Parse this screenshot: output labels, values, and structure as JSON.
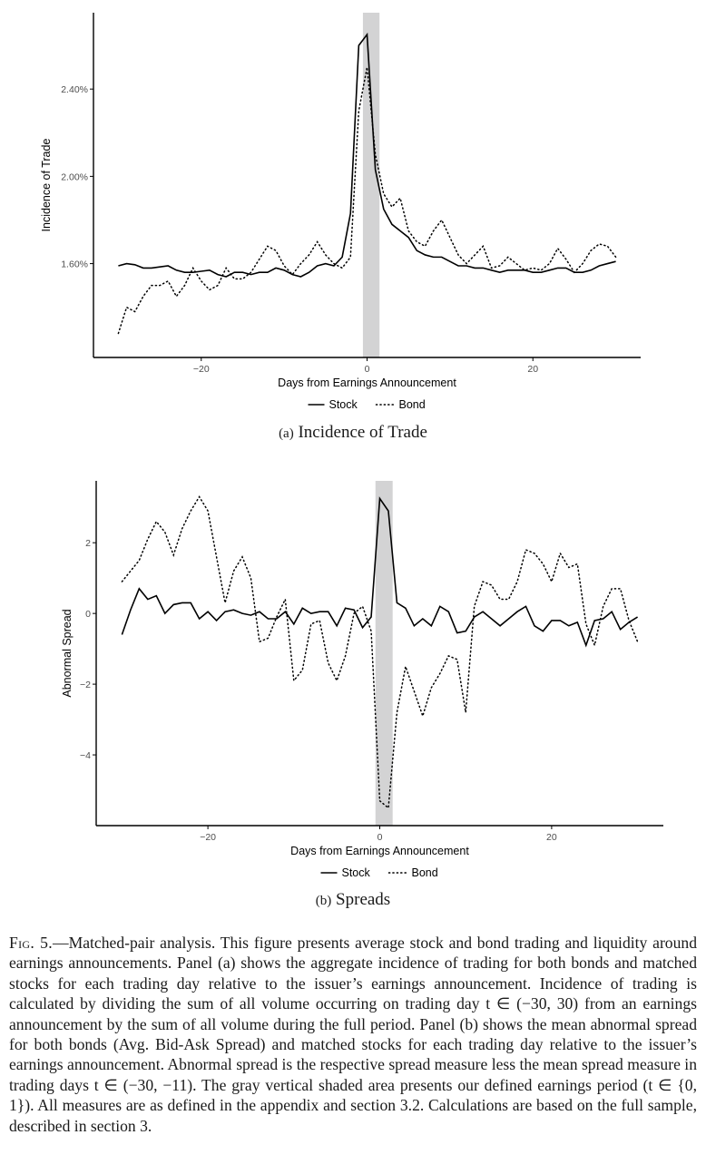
{
  "colors": {
    "line": "#000000",
    "shade": "#d3d3d4",
    "tick_text": "#4d4d4d"
  },
  "chart_data": [
    {
      "id": "a",
      "type": "line",
      "title": "Incidence of Trade",
      "panel_tag": "(a)",
      "xlabel": "Days from Earnings Announcement",
      "ylabel": "Incidence of Trade",
      "xlim": [
        -33,
        33
      ],
      "ylim": [
        0.0117,
        0.0275
      ],
      "x_ticks": [
        {
          "value": -20,
          "label": "−20"
        },
        {
          "value": 0,
          "label": "0"
        },
        {
          "value": 20,
          "label": "20"
        }
      ],
      "y_ticks": [
        {
          "value": 0.016,
          "label": "1.60%"
        },
        {
          "value": 0.02,
          "label": "2.00%"
        },
        {
          "value": 0.024,
          "label": "2.40%"
        }
      ],
      "shaded_period": [
        -0.5,
        1.5
      ],
      "legend": {
        "position": "bottom",
        "stock": "Stock",
        "bond": "Bond"
      },
      "series": [
        {
          "name": "Stock",
          "style": "solid",
          "x": [
            -30,
            -29,
            -28,
            -27,
            -26,
            -25,
            -24,
            -23,
            -22,
            -21,
            -20,
            -19,
            -18,
            -17,
            -16,
            -15,
            -14,
            -13,
            -12,
            -11,
            -10,
            -9,
            -8,
            -7,
            -6,
            -5,
            -4,
            -3,
            -2,
            -1,
            0,
            1,
            2,
            3,
            4,
            5,
            6,
            7,
            8,
            9,
            10,
            11,
            12,
            13,
            14,
            15,
            16,
            17,
            18,
            19,
            20,
            21,
            22,
            23,
            24,
            25,
            26,
            27,
            28,
            29,
            30
          ],
          "values": [
            0.0159,
            0.016,
            0.01595,
            0.0158,
            0.0158,
            0.01585,
            0.0159,
            0.0157,
            0.0156,
            0.0156,
            0.01565,
            0.0157,
            0.0155,
            0.0154,
            0.0156,
            0.0156,
            0.0155,
            0.0156,
            0.0156,
            0.0158,
            0.0157,
            0.0155,
            0.0154,
            0.0156,
            0.0159,
            0.016,
            0.0159,
            0.0163,
            0.0183,
            0.026,
            0.0265,
            0.0203,
            0.0185,
            0.0178,
            0.0175,
            0.0172,
            0.0166,
            0.0164,
            0.0163,
            0.0163,
            0.0161,
            0.0159,
            0.0159,
            0.0158,
            0.0158,
            0.0157,
            0.0156,
            0.0157,
            0.0157,
            0.0157,
            0.0156,
            0.0156,
            0.0157,
            0.0158,
            0.0158,
            0.0156,
            0.0156,
            0.0157,
            0.0159,
            0.016,
            0.0161
          ]
        },
        {
          "name": "Bond",
          "style": "dotted",
          "x": [
            -30,
            -29,
            -28,
            -27,
            -26,
            -25,
            -24,
            -23,
            -22,
            -21,
            -20,
            -19,
            -18,
            -17,
            -16,
            -15,
            -14,
            -13,
            -12,
            -11,
            -10,
            -9,
            -8,
            -7,
            -6,
            -5,
            -4,
            -3,
            -2,
            -1,
            0,
            1,
            2,
            3,
            4,
            5,
            6,
            7,
            8,
            9,
            10,
            11,
            12,
            13,
            14,
            15,
            16,
            17,
            18,
            19,
            20,
            21,
            22,
            23,
            24,
            25,
            26,
            27,
            28,
            29,
            30
          ],
          "values": [
            0.0128,
            0.014,
            0.0138,
            0.0145,
            0.015,
            0.015,
            0.0152,
            0.0145,
            0.015,
            0.0158,
            0.0152,
            0.0148,
            0.015,
            0.0158,
            0.0153,
            0.0153,
            0.0156,
            0.0162,
            0.0168,
            0.0166,
            0.0159,
            0.0155,
            0.016,
            0.0164,
            0.017,
            0.0164,
            0.016,
            0.0158,
            0.0163,
            0.023,
            0.025,
            0.021,
            0.0192,
            0.0186,
            0.019,
            0.0175,
            0.017,
            0.0168,
            0.0175,
            0.018,
            0.0172,
            0.0164,
            0.016,
            0.0164,
            0.0168,
            0.0158,
            0.0159,
            0.0163,
            0.016,
            0.0157,
            0.0158,
            0.0157,
            0.016,
            0.0167,
            0.0162,
            0.0156,
            0.016,
            0.0166,
            0.0169,
            0.0168,
            0.0163
          ]
        }
      ]
    },
    {
      "id": "b",
      "type": "line",
      "title": "Spreads",
      "panel_tag": "(b)",
      "xlabel": "Days from Earnings Announcement",
      "ylabel": "Abnormal Spread",
      "xlim": [
        -33,
        33
      ],
      "ylim": [
        -6.0,
        3.75
      ],
      "x_ticks": [
        {
          "value": -20,
          "label": "−20"
        },
        {
          "value": 0,
          "label": "0"
        },
        {
          "value": 20,
          "label": "20"
        }
      ],
      "y_ticks": [
        {
          "value": -4,
          "label": "−4"
        },
        {
          "value": -2,
          "label": "−2"
        },
        {
          "value": 0,
          "label": "0"
        },
        {
          "value": 2,
          "label": "2"
        }
      ],
      "shaded_period": [
        -0.5,
        1.5
      ],
      "legend": {
        "position": "bottom",
        "stock": "Stock",
        "bond": "Bond"
      },
      "series": [
        {
          "name": "Stock",
          "style": "solid",
          "x": [
            -30,
            -29,
            -28,
            -27,
            -26,
            -25,
            -24,
            -23,
            -22,
            -21,
            -20,
            -19,
            -18,
            -17,
            -16,
            -15,
            -14,
            -13,
            -12,
            -11,
            -10,
            -9,
            -8,
            -7,
            -6,
            -5,
            -4,
            -3,
            -2,
            -1,
            0,
            1,
            2,
            3,
            4,
            5,
            6,
            7,
            8,
            9,
            10,
            11,
            12,
            13,
            14,
            15,
            16,
            17,
            18,
            19,
            20,
            21,
            22,
            23,
            24,
            25,
            26,
            27,
            28,
            29,
            30
          ],
          "values": [
            -0.6,
            0.1,
            0.7,
            0.4,
            0.5,
            0.0,
            0.25,
            0.3,
            0.3,
            -0.15,
            0.05,
            -0.2,
            0.05,
            0.1,
            0.0,
            -0.05,
            0.05,
            -0.15,
            -0.15,
            0.05,
            -0.3,
            0.15,
            0.0,
            0.05,
            0.05,
            -0.35,
            0.15,
            0.1,
            -0.4,
            -0.1,
            3.25,
            2.9,
            0.3,
            0.15,
            -0.35,
            -0.15,
            -0.35,
            0.2,
            0.05,
            -0.55,
            -0.5,
            -0.1,
            0.05,
            -0.15,
            -0.35,
            -0.15,
            0.05,
            0.2,
            -0.35,
            -0.5,
            -0.2,
            -0.2,
            -0.35,
            -0.25,
            -0.9,
            -0.2,
            -0.15,
            0.05,
            -0.45,
            -0.25,
            -0.1
          ]
        },
        {
          "name": "Bond",
          "style": "dotted",
          "x": [
            -30,
            -29,
            -28,
            -27,
            -26,
            -25,
            -24,
            -23,
            -22,
            -21,
            -20,
            -19,
            -18,
            -17,
            -16,
            -15,
            -14,
            -13,
            -12,
            -11,
            -10,
            -9,
            -8,
            -7,
            -6,
            -5,
            -4,
            -3,
            -2,
            -1,
            0,
            1,
            2,
            3,
            4,
            5,
            6,
            7,
            8,
            9,
            10,
            11,
            12,
            13,
            14,
            15,
            16,
            17,
            18,
            19,
            20,
            21,
            22,
            23,
            24,
            25,
            26,
            27,
            28,
            29,
            30
          ],
          "values": [
            0.9,
            1.2,
            1.5,
            2.1,
            2.6,
            2.3,
            1.65,
            2.4,
            2.9,
            3.3,
            2.9,
            1.6,
            0.3,
            1.2,
            1.6,
            1.0,
            -0.8,
            -0.7,
            -0.1,
            0.4,
            -1.9,
            -1.6,
            -0.3,
            -0.2,
            -1.4,
            -1.9,
            -1.2,
            0.0,
            0.2,
            -0.5,
            -5.3,
            -5.5,
            -2.8,
            -1.5,
            -2.2,
            -2.9,
            -2.1,
            -1.7,
            -1.2,
            -1.3,
            -2.8,
            0.2,
            0.9,
            0.8,
            0.4,
            0.4,
            0.9,
            1.8,
            1.7,
            1.4,
            0.9,
            1.7,
            1.3,
            1.4,
            -0.3,
            -0.9,
            0.2,
            0.7,
            0.7,
            -0.2,
            -0.8
          ]
        }
      ]
    }
  ],
  "caption": {
    "fig_label": "Fig. 5.",
    "title": "Matched-pair analysis.",
    "body": "This figure presents average stock and bond trading and liquidity around earnings announcements. Panel (a) shows the aggregate incidence of trading for both bonds and matched stocks for each trading day relative to the issuer’s earnings announcement. Incidence of trading is calculated by dividing the sum of all volume occurring on trading day t ∈ (−30, 30) from an earnings announcement by the sum of all volume during the full period. Panel (b) shows the mean abnormal spread for both bonds (Avg. Bid-Ask Spread) and matched stocks for each trading day relative to the issuer’s earnings announcement. Abnormal spread is the respective spread measure less the mean spread measure in trading days t ∈ (−30, −11). The gray vertical shaded area presents our defined earnings period (t ∈ {0, 1}). All measures are as defined in the appendix and section 3.2. Calculations are based on the full sample, described in section 3."
  }
}
